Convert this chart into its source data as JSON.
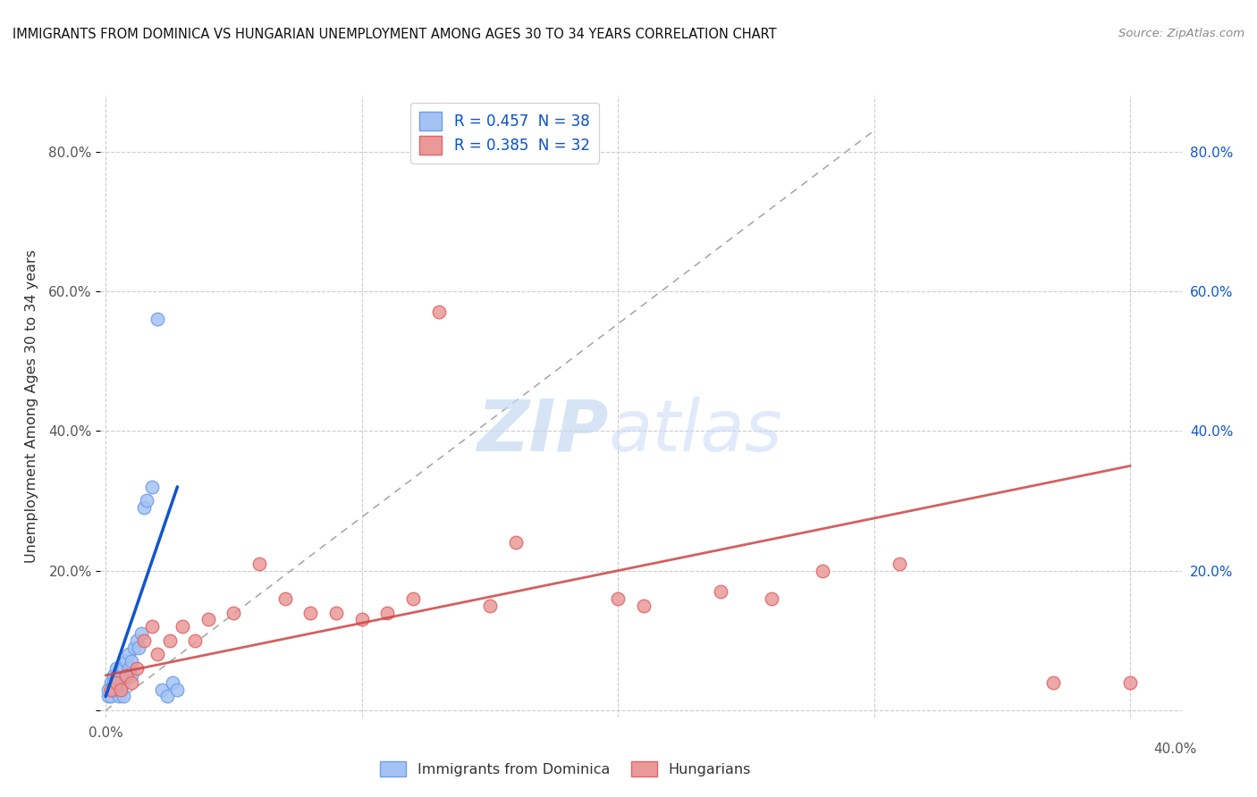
{
  "title": "IMMIGRANTS FROM DOMINICA VS HUNGARIAN UNEMPLOYMENT AMONG AGES 30 TO 34 YEARS CORRELATION CHART",
  "source": "Source: ZipAtlas.com",
  "ylabel": "Unemployment Among Ages 30 to 34 years",
  "xlim": [
    -0.002,
    0.42
  ],
  "ylim": [
    -0.01,
    0.88
  ],
  "x_ticks": [
    0.0,
    0.1,
    0.2,
    0.3,
    0.4
  ],
  "x_tick_labels": [
    "0.0%",
    "",
    "",
    "",
    ""
  ],
  "y_ticks": [
    0.0,
    0.2,
    0.4,
    0.6,
    0.8
  ],
  "y_tick_labels_left": [
    "",
    "20.0%",
    "40.0%",
    "60.0%",
    "80.0%"
  ],
  "y_tick_labels_right": [
    "",
    "20.0%",
    "40.0%",
    "60.0%",
    "80.0%"
  ],
  "legend1_label": "R = 0.457  N = 38",
  "legend2_label": "R = 0.385  N = 32",
  "legend1_color": "#a4c2f4",
  "legend1_edge": "#6d9eeb",
  "legend2_color": "#ea9999",
  "legend2_edge": "#e06666",
  "blue_scatter_color": "#a4c2f4",
  "blue_scatter_edge": "#6d9eeb",
  "pink_scatter_color": "#ea9999",
  "pink_scatter_edge": "#e06666",
  "bg_color": "#ffffff",
  "grid_color": "#cccccc",
  "blue_line_color": "#1155cc",
  "pink_line_color": "#cc4444",
  "dashed_line_color": "#aaaaaa",
  "right_tick_color": "#1155cc",
  "blue_scatter_x": [
    0.001,
    0.002,
    0.002,
    0.003,
    0.003,
    0.004,
    0.004,
    0.005,
    0.005,
    0.006,
    0.006,
    0.007,
    0.007,
    0.008,
    0.008,
    0.009,
    0.009,
    0.01,
    0.01,
    0.011,
    0.012,
    0.013,
    0.014,
    0.015,
    0.016,
    0.018,
    0.02,
    0.022,
    0.024,
    0.026,
    0.028,
    0.001,
    0.002,
    0.003,
    0.004,
    0.005,
    0.003,
    0.007
  ],
  "blue_scatter_y": [
    0.02,
    0.03,
    0.04,
    0.03,
    0.05,
    0.04,
    0.06,
    0.05,
    0.04,
    0.03,
    0.05,
    0.04,
    0.06,
    0.05,
    0.07,
    0.06,
    0.08,
    0.07,
    0.05,
    0.09,
    0.1,
    0.09,
    0.11,
    0.29,
    0.3,
    0.32,
    0.56,
    0.03,
    0.02,
    0.04,
    0.03,
    0.03,
    0.02,
    0.04,
    0.03,
    0.02,
    0.03,
    0.02
  ],
  "pink_scatter_x": [
    0.002,
    0.004,
    0.006,
    0.008,
    0.01,
    0.012,
    0.015,
    0.018,
    0.02,
    0.025,
    0.03,
    0.035,
    0.04,
    0.05,
    0.06,
    0.07,
    0.08,
    0.09,
    0.1,
    0.11,
    0.12,
    0.15,
    0.16,
    0.2,
    0.21,
    0.24,
    0.26,
    0.28,
    0.31,
    0.37,
    0.4,
    0.13
  ],
  "pink_scatter_y": [
    0.03,
    0.04,
    0.03,
    0.05,
    0.04,
    0.06,
    0.1,
    0.12,
    0.08,
    0.1,
    0.12,
    0.1,
    0.13,
    0.14,
    0.21,
    0.16,
    0.14,
    0.14,
    0.13,
    0.14,
    0.16,
    0.15,
    0.24,
    0.16,
    0.15,
    0.17,
    0.16,
    0.2,
    0.21,
    0.04,
    0.04,
    0.57
  ],
  "blue_line_x": [
    0.0,
    0.028
  ],
  "blue_line_y": [
    0.02,
    0.32
  ],
  "pink_line_x": [
    0.0,
    0.4
  ],
  "pink_line_y": [
    0.05,
    0.35
  ],
  "dashed_line_x": [
    0.0,
    0.3
  ],
  "dashed_line_y": [
    0.0,
    0.83
  ]
}
